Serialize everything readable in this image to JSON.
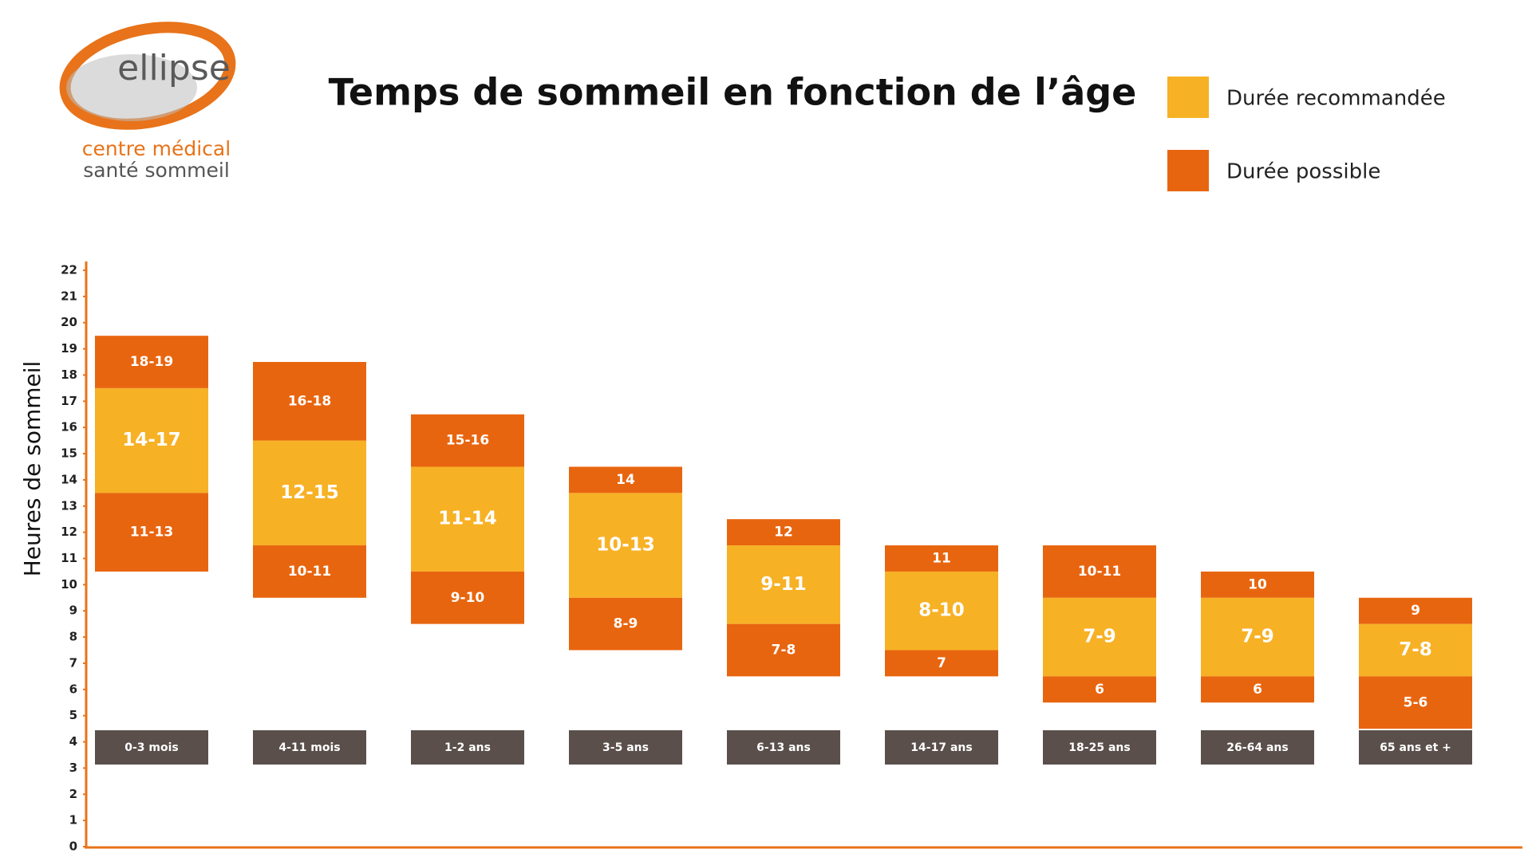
{
  "logo": {
    "name": "ellipse",
    "line1": "centre médical",
    "line2": "santé sommeil"
  },
  "chart_data": {
    "type": "range-bar",
    "title": "Temps de sommeil en fonction de l’âge",
    "y_label": "Heures de sommeil",
    "categories": [
      "0-3 mois",
      "4-11 mois",
      "1-2 ans",
      "3-5 ans",
      "6-13 ans",
      "14-17 ans",
      "18-25 ans",
      "26-64 ans",
      "65 ans et +"
    ],
    "ylim": [
      0,
      22
    ],
    "yticks": [
      0,
      1,
      2,
      3,
      4,
      5,
      6,
      7,
      8,
      9,
      10,
      11,
      12,
      13,
      14,
      15,
      16,
      17,
      18,
      19,
      20,
      21,
      22
    ],
    "series": [
      {
        "name": "Durée recommandée",
        "color": "#f7b125",
        "values": [
          [
            14,
            17
          ],
          [
            12,
            15
          ],
          [
            11,
            14
          ],
          [
            10,
            13
          ],
          [
            9,
            11
          ],
          [
            8,
            10
          ],
          [
            7,
            9
          ],
          [
            7,
            9
          ],
          [
            7,
            8
          ]
        ],
        "value_labels": [
          "14-17",
          "12-15",
          "11-14",
          "10-13",
          "9-11",
          "8-10",
          "7-9",
          "7-9",
          "7-8"
        ]
      },
      {
        "name": "Durée possible",
        "color": "#e8650f",
        "values": [
          [
            [
              11,
              13
            ],
            [
              18,
              19
            ]
          ],
          [
            [
              10,
              11
            ],
            [
              16,
              18
            ]
          ],
          [
            [
              9,
              10
            ],
            [
              15,
              16
            ]
          ],
          [
            [
              8,
              9
            ],
            [
              14,
              14
            ]
          ],
          [
            [
              7,
              8
            ],
            [
              12,
              12
            ]
          ],
          [
            [
              7,
              7
            ],
            [
              11,
              11
            ]
          ],
          [
            [
              6,
              6
            ],
            [
              10,
              11
            ]
          ],
          [
            [
              6,
              6
            ],
            [
              10,
              10
            ]
          ],
          [
            [
              5,
              6
            ],
            [
              9,
              9
            ]
          ]
        ],
        "value_labels": [
          [
            "11-13",
            "18-19"
          ],
          [
            "10-11",
            "16-18"
          ],
          [
            "9-10",
            "15-16"
          ],
          [
            "8-9",
            "14"
          ],
          [
            "7-8",
            "12"
          ],
          [
            "7",
            "11"
          ],
          [
            "6",
            "10-11"
          ],
          [
            "6",
            "10"
          ],
          [
            "5-6",
            "9"
          ]
        ]
      }
    ]
  }
}
